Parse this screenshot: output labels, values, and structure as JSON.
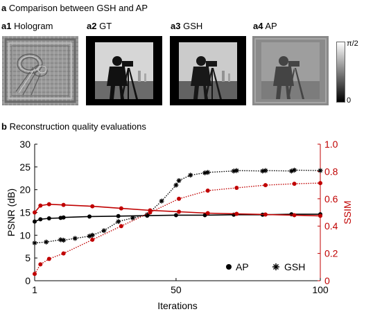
{
  "section_a": {
    "letter": "a",
    "title": "Comparison between GSH and AP",
    "panels": [
      {
        "tag": "a1",
        "label": "Hologram"
      },
      {
        "tag": "a2",
        "label": "GT"
      },
      {
        "tag": "a3",
        "label": "GSH"
      },
      {
        "tag": "a4",
        "label": "AP"
      }
    ],
    "colorbar": {
      "max_label": "π/2",
      "min_label": "0"
    }
  },
  "section_b": {
    "letter": "b",
    "title": "Reconstruction quality evaluations"
  },
  "colors": {
    "psnr": "#000000",
    "ssim": "#c00000"
  },
  "chart_data": {
    "type": "line",
    "xlabel": "Iterations",
    "x_ticks": [
      1,
      50,
      100
    ],
    "xlim": [
      1,
      100
    ],
    "y_left": {
      "label": "PSNR (dB)",
      "lim": [
        0,
        30
      ],
      "ticks": [
        0,
        5,
        10,
        15,
        20,
        25,
        30
      ]
    },
    "y_right": {
      "label": "SSIM",
      "lim": [
        0,
        1.0
      ],
      "ticks": [
        "0",
        "0.2",
        "0.4",
        "0.6",
        "0.8",
        "1.0"
      ]
    },
    "legend": {
      "position": "bottom-right",
      "entries": [
        {
          "marker": "dot",
          "label": "AP"
        },
        {
          "marker": "asterisk",
          "label": "GSH"
        }
      ]
    },
    "series": [
      {
        "metric": "PSNR",
        "method": "AP",
        "axis": "left",
        "style": "solid",
        "color": "#000000",
        "marker": "dot",
        "x": [
          1,
          3,
          6,
          10,
          11,
          20,
          30,
          40,
          50,
          60,
          70,
          80,
          90,
          100
        ],
        "y": [
          13.0,
          13.5,
          13.7,
          13.8,
          13.9,
          14.1,
          14.2,
          14.3,
          14.4,
          14.4,
          14.5,
          14.5,
          14.6,
          14.6
        ]
      },
      {
        "metric": "PSNR",
        "method": "GSH",
        "axis": "left",
        "style": "dotted",
        "color": "#000000",
        "marker": "asterisk",
        "x": [
          1,
          5,
          10,
          11,
          15,
          20,
          21,
          25,
          30,
          35,
          40,
          45,
          50,
          51,
          55,
          60,
          61,
          70,
          71,
          80,
          81,
          90,
          91,
          100
        ],
        "y": [
          8.3,
          8.5,
          9.0,
          8.9,
          9.3,
          9.8,
          10.0,
          11.0,
          13.0,
          13.8,
          14.5,
          17.5,
          21.0,
          22.0,
          23.2,
          23.7,
          23.8,
          24.1,
          24.2,
          24.1,
          24.2,
          24.1,
          24.3,
          24.2
        ]
      },
      {
        "metric": "SSIM",
        "method": "AP",
        "axis": "right",
        "style": "solid",
        "color": "#c00000",
        "marker": "dot",
        "x": [
          1,
          3,
          6,
          11,
          21,
          31,
          41,
          51,
          61,
          71,
          81,
          91,
          100
        ],
        "y": [
          0.5,
          0.55,
          0.56,
          0.555,
          0.545,
          0.53,
          0.515,
          0.505,
          0.495,
          0.49,
          0.485,
          0.48,
          0.475
        ]
      },
      {
        "metric": "SSIM",
        "method": "GSH",
        "axis": "right",
        "style": "dotted",
        "color": "#c00000",
        "marker": "dot",
        "x": [
          1,
          3,
          6,
          11,
          21,
          31,
          41,
          51,
          61,
          71,
          81,
          91,
          100
        ],
        "y": [
          0.05,
          0.12,
          0.16,
          0.2,
          0.3,
          0.4,
          0.5,
          0.6,
          0.66,
          0.68,
          0.7,
          0.71,
          0.715
        ]
      }
    ]
  }
}
